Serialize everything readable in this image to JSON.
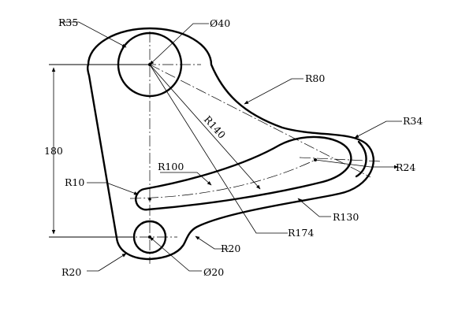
{
  "labels": {
    "r35": "R35",
    "d40": "Ø40",
    "r80": "R80",
    "r34": "R34",
    "r140": "R140",
    "r100": "R100",
    "r24": "R24",
    "r10": "R10",
    "r130": "R130",
    "dim180": "180",
    "r174": "R174",
    "r20_fillet": "R20",
    "r20_base": "R20",
    "d20": "Ø20"
  }
}
